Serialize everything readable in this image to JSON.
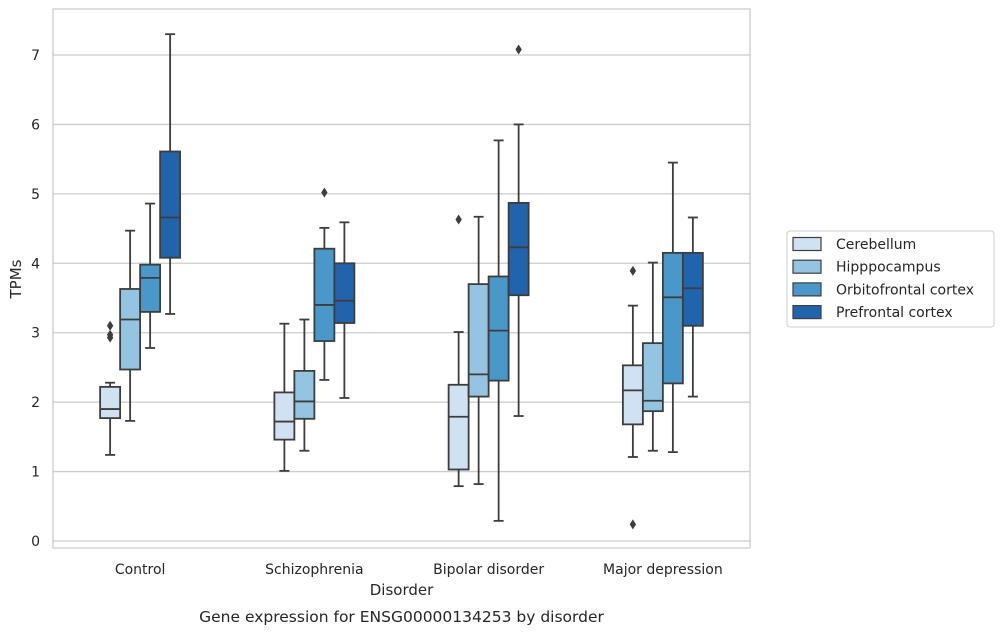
{
  "caption": "Gene expression for ENSG00000134253 by disorder",
  "chart_data": {
    "type": "box",
    "xlabel": "Disorder",
    "ylabel": "TPMs",
    "ylim": [
      -0.1,
      7.65
    ],
    "yticks": [
      0,
      1,
      2,
      3,
      4,
      5,
      6,
      7
    ],
    "grid": "horizontal",
    "legend_position": "right",
    "categories": [
      "Control",
      "Schizophrenia",
      "Bipolar disorder",
      "Major depression"
    ],
    "series": [
      {
        "name": "Cerebellum",
        "color": "#d0e1f2",
        "boxes": [
          {
            "whislo": 1.24,
            "q1": 1.77,
            "med": 1.9,
            "q3": 2.22,
            "whishi": 2.28,
            "fliers": [
              2.93,
              2.97,
              3.1
            ]
          },
          {
            "whislo": 1.01,
            "q1": 1.46,
            "med": 1.72,
            "q3": 2.14,
            "whishi": 3.13,
            "fliers": []
          },
          {
            "whislo": 0.79,
            "q1": 1.03,
            "med": 1.79,
            "q3": 2.25,
            "whishi": 3.01,
            "fliers": [
              4.63
            ]
          },
          {
            "whislo": 1.21,
            "q1": 1.68,
            "med": 2.17,
            "q3": 2.53,
            "whishi": 3.39,
            "fliers": [
              3.89,
              0.24
            ]
          }
        ]
      },
      {
        "name": "Hipppocampus",
        "color": "#94c4df",
        "boxes": [
          {
            "whislo": 1.73,
            "q1": 2.47,
            "med": 3.19,
            "q3": 3.63,
            "whishi": 4.47,
            "fliers": []
          },
          {
            "whislo": 1.3,
            "q1": 1.76,
            "med": 2.01,
            "q3": 2.45,
            "whishi": 3.19,
            "fliers": []
          },
          {
            "whislo": 0.82,
            "q1": 2.08,
            "med": 2.4,
            "q3": 3.7,
            "whishi": 4.67,
            "fliers": []
          },
          {
            "whislo": 1.3,
            "q1": 1.87,
            "med": 2.02,
            "q3": 2.85,
            "whishi": 4.01,
            "fliers": []
          }
        ]
      },
      {
        "name": "Orbitofrontal cortex",
        "color": "#4a98c9",
        "boxes": [
          {
            "whislo": 2.78,
            "q1": 3.3,
            "med": 3.79,
            "q3": 3.98,
            "whishi": 4.86,
            "fliers": []
          },
          {
            "whislo": 2.32,
            "q1": 2.88,
            "med": 3.4,
            "q3": 4.21,
            "whishi": 4.51,
            "fliers": [
              5.02
            ]
          },
          {
            "whislo": 0.29,
            "q1": 2.31,
            "med": 3.03,
            "q3": 3.81,
            "whishi": 5.77,
            "fliers": []
          },
          {
            "whislo": 1.28,
            "q1": 2.27,
            "med": 3.51,
            "q3": 4.15,
            "whishi": 5.45,
            "fliers": []
          }
        ]
      },
      {
        "name": "Prefrontal cortex",
        "color": "#2164ab",
        "boxes": [
          {
            "whislo": 3.27,
            "q1": 4.08,
            "med": 4.66,
            "q3": 5.61,
            "whishi": 7.3,
            "fliers": []
          },
          {
            "whislo": 2.06,
            "q1": 3.14,
            "med": 3.46,
            "q3": 4.0,
            "whishi": 4.59,
            "fliers": []
          },
          {
            "whislo": 1.8,
            "q1": 3.54,
            "med": 4.23,
            "q3": 4.87,
            "whishi": 6.0,
            "fliers": [
              7.08
            ]
          },
          {
            "whislo": 2.08,
            "q1": 3.1,
            "med": 3.64,
            "q3": 4.15,
            "whishi": 4.66,
            "fliers": []
          }
        ]
      }
    ]
  }
}
